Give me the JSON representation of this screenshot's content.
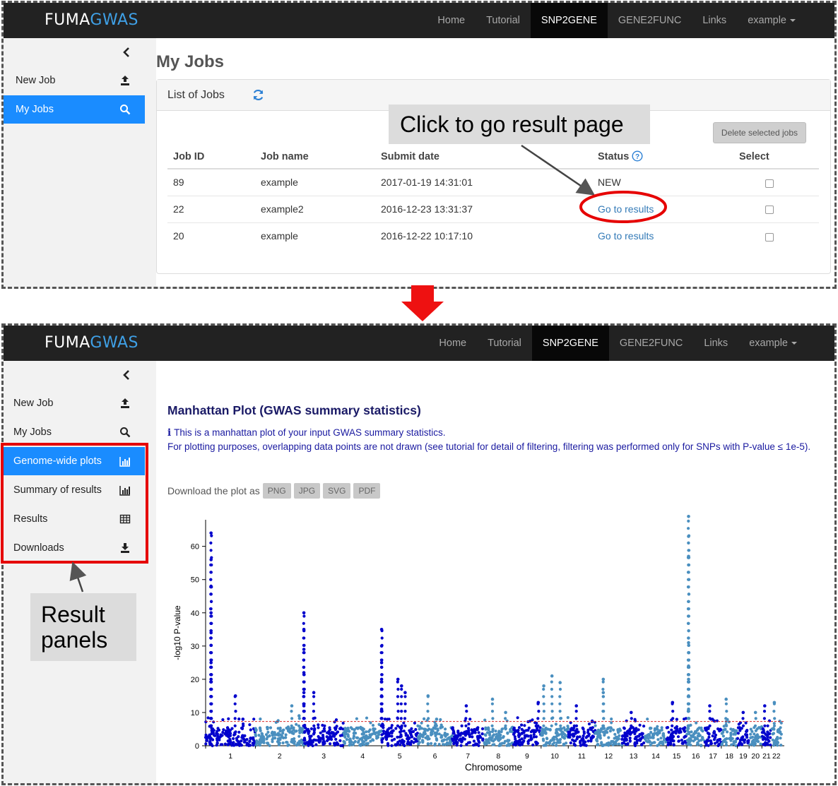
{
  "brand": {
    "part1": "FUMA",
    "part2": "GWAS"
  },
  "nav": [
    "Home",
    "Tutorial",
    "SNP2GENE",
    "GENE2FUNC",
    "Links",
    "example"
  ],
  "screen1": {
    "sidebar": [
      {
        "label": "New Job",
        "icon": "upload-icon"
      },
      {
        "label": "My Jobs",
        "icon": "search-icon"
      }
    ],
    "page_title": "My Jobs",
    "panel_title": "List of Jobs",
    "delete_button": "Delete selected jobs",
    "columns": [
      "Job ID",
      "Job name",
      "Submit date",
      "Status",
      "Select"
    ],
    "rows": [
      {
        "id": "89",
        "name": "example",
        "date": "2017-01-19 14:31:01",
        "status": "NEW"
      },
      {
        "id": "22",
        "name": "example2",
        "date": "2016-12-23 13:31:37",
        "status": "Go to results"
      },
      {
        "id": "20",
        "name": "example",
        "date": "2016-12-22 10:17:10",
        "status": "Go to results"
      }
    ],
    "callout": "Click to go result page"
  },
  "screen2": {
    "sidebar": [
      {
        "label": "New Job",
        "icon": "upload-icon"
      },
      {
        "label": "My Jobs",
        "icon": "search-icon"
      },
      {
        "label": "Genome-wide plots",
        "icon": "bar-chart-icon"
      },
      {
        "label": "Summary of results",
        "icon": "bar-chart-icon"
      },
      {
        "label": "Results",
        "icon": "table-icon"
      },
      {
        "label": "Downloads",
        "icon": "download-icon"
      }
    ],
    "callout_line1": "Result",
    "callout_line2": "panels",
    "plot_title": "Manhattan Plot (GWAS summary statistics)",
    "desc_line1": "This is a manhattan plot of your input GWAS summary statistics.",
    "desc_line2": "For plotting purposes, overlapping data points are not drawn (see tutorial for detail of filtering, filtering was performed only for SNPs with P-value ≤ 1e-5).",
    "download_label": "Download the plot as",
    "download_formats": [
      "PNG",
      "JPG",
      "SVG",
      "PDF"
    ]
  },
  "chart_data": {
    "type": "scatter",
    "title": "",
    "xlabel": "Chromosome",
    "ylabel": "-log10 P-value",
    "ylim": [
      0,
      68
    ],
    "yticks": [
      0,
      10,
      20,
      30,
      40,
      50,
      60
    ],
    "threshold": 7.3,
    "threshold_color": "#d62728",
    "colors": [
      "#0000cc",
      "#4a8fbf"
    ],
    "chromosomes": [
      "1",
      "2",
      "3",
      "4",
      "5",
      "6",
      "7",
      "8",
      "9",
      "10",
      "11",
      "12",
      "13",
      "14",
      "15",
      "16",
      "17",
      "18",
      "19",
      "20",
      "21",
      "22"
    ],
    "peaks": [
      {
        "chr": "1",
        "x": 0.11,
        "y": 64
      },
      {
        "chr": "1",
        "x": 0.11,
        "y": 56
      },
      {
        "chr": "1",
        "x": 0.11,
        "y": 48
      },
      {
        "chr": "1",
        "x": 0.11,
        "y": 40
      },
      {
        "chr": "1",
        "x": 0.11,
        "y": 34
      },
      {
        "chr": "1",
        "x": 0.11,
        "y": 25
      },
      {
        "chr": "1",
        "x": 0.11,
        "y": 20
      },
      {
        "chr": "1",
        "x": 0.6,
        "y": 15
      },
      {
        "chr": "1",
        "x": 0.75,
        "y": 8
      },
      {
        "chr": "2",
        "x": 0.75,
        "y": 12
      },
      {
        "chr": "2",
        "x": 0.9,
        "y": 9
      },
      {
        "chr": "3",
        "x": 0.0,
        "y": 40
      },
      {
        "chr": "3",
        "x": 0.0,
        "y": 35
      },
      {
        "chr": "3",
        "x": 0.0,
        "y": 29
      },
      {
        "chr": "3",
        "x": 0.0,
        "y": 22
      },
      {
        "chr": "3",
        "x": 0.0,
        "y": 16
      },
      {
        "chr": "3",
        "x": 0.0,
        "y": 12
      },
      {
        "chr": "3",
        "x": 0.25,
        "y": 16
      },
      {
        "chr": "5",
        "x": 0.0,
        "y": 35
      },
      {
        "chr": "5",
        "x": 0.0,
        "y": 30
      },
      {
        "chr": "5",
        "x": 0.0,
        "y": 25
      },
      {
        "chr": "5",
        "x": 0.0,
        "y": 20
      },
      {
        "chr": "5",
        "x": 0.0,
        "y": 15
      },
      {
        "chr": "5",
        "x": 0.0,
        "y": 11
      },
      {
        "chr": "5",
        "x": 0.45,
        "y": 20
      },
      {
        "chr": "5",
        "x": 0.55,
        "y": 18
      },
      {
        "chr": "5",
        "x": 0.65,
        "y": 16
      },
      {
        "chr": "6",
        "x": 0.3,
        "y": 15
      },
      {
        "chr": "6",
        "x": 0.55,
        "y": 8
      },
      {
        "chr": "7",
        "x": 0.45,
        "y": 12
      },
      {
        "chr": "8",
        "x": 0.3,
        "y": 14
      },
      {
        "chr": "8",
        "x": 0.75,
        "y": 10
      },
      {
        "chr": "9",
        "x": 0.9,
        "y": 13
      },
      {
        "chr": "10",
        "x": 0.1,
        "y": 18
      },
      {
        "chr": "10",
        "x": 0.4,
        "y": 21
      },
      {
        "chr": "10",
        "x": 0.7,
        "y": 19
      },
      {
        "chr": "11",
        "x": 0.3,
        "y": 12
      },
      {
        "chr": "12",
        "x": 0.3,
        "y": 20
      },
      {
        "chr": "12",
        "x": 0.3,
        "y": 16
      },
      {
        "chr": "13",
        "x": 0.4,
        "y": 10
      },
      {
        "chr": "15",
        "x": 0.3,
        "y": 13
      },
      {
        "chr": "16",
        "x": 0.1,
        "y": 69
      },
      {
        "chr": "16",
        "x": 0.1,
        "y": 63
      },
      {
        "chr": "16",
        "x": 0.1,
        "y": 57
      },
      {
        "chr": "16",
        "x": 0.1,
        "y": 31
      },
      {
        "chr": "16",
        "x": 0.1,
        "y": 28
      },
      {
        "chr": "16",
        "x": 0.1,
        "y": 24
      },
      {
        "chr": "16",
        "x": 0.1,
        "y": 20
      },
      {
        "chr": "16",
        "x": 0.1,
        "y": 15
      },
      {
        "chr": "16",
        "x": 0.1,
        "y": 11
      },
      {
        "chr": "17",
        "x": 0.3,
        "y": 12
      },
      {
        "chr": "18",
        "x": 0.3,
        "y": 14
      },
      {
        "chr": "19",
        "x": 0.5,
        "y": 10
      },
      {
        "chr": "20",
        "x": 0.5,
        "y": 10
      },
      {
        "chr": "21",
        "x": 0.3,
        "y": 12
      },
      {
        "chr": "22",
        "x": 0.3,
        "y": 13
      }
    ]
  }
}
